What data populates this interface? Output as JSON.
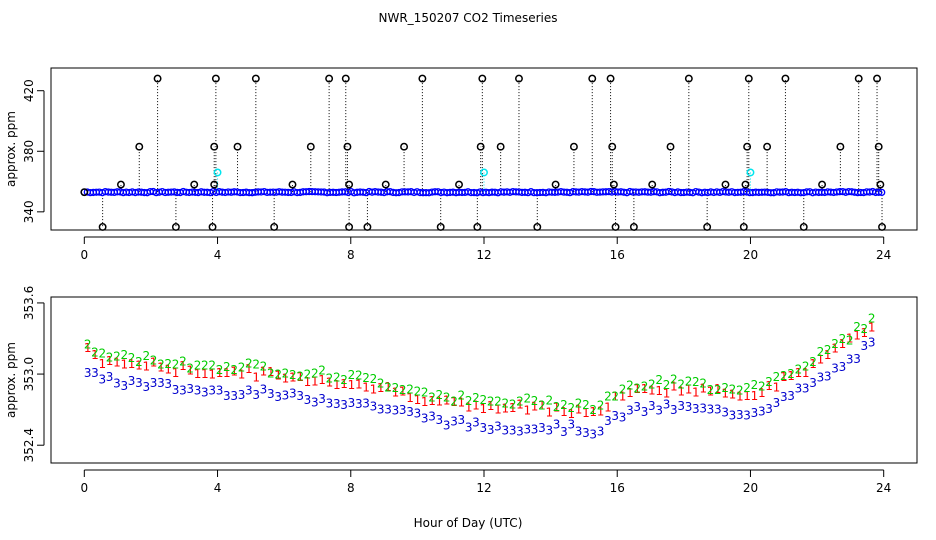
{
  "chart_data": [
    {
      "type": "scatter",
      "title": "NWR_150207  CO2 Timeseries",
      "xlabel": "",
      "ylabel": "approx. ppm",
      "xlim": [
        -1,
        25
      ],
      "ylim": [
        328,
        435
      ],
      "xticks": [
        0,
        4,
        8,
        12,
        16,
        20,
        24
      ],
      "xtick_labels": [
        "0",
        "4",
        "8",
        "12",
        "16",
        "20",
        "24"
      ],
      "yticks": [
        340,
        380,
        420
      ],
      "ytick_labels": [
        "340",
        "380",
        "420"
      ],
      "baseline": 353,
      "series": [
        {
          "name": "blue",
          "color": "#0000ff",
          "marker": "circle"
        },
        {
          "name": "black",
          "color": "#000000",
          "marker": "circle"
        },
        {
          "name": "cyan",
          "color": "#00e5ee",
          "marker": "circle"
        }
      ],
      "spikes": [
        {
          "x": 0.0,
          "y": 353,
          "label": ""
        },
        {
          "x": 0.55,
          "y": 330
        },
        {
          "x": 1.1,
          "y": 358
        },
        {
          "x": 1.65,
          "y": 383
        },
        {
          "x": 2.2,
          "y": 428
        },
        {
          "x": 2.75,
          "y": 330
        },
        {
          "x": 3.3,
          "y": 358
        },
        {
          "x": 3.85,
          "y": 330
        },
        {
          "x": 3.9,
          "y": 383
        },
        {
          "x": 3.95,
          "y": 428
        },
        {
          "x": 3.9,
          "y": 358
        },
        {
          "x": 4.6,
          "y": 383
        },
        {
          "x": 5.15,
          "y": 428
        },
        {
          "x": 5.7,
          "y": 330
        },
        {
          "x": 6.25,
          "y": 358
        },
        {
          "x": 6.8,
          "y": 383
        },
        {
          "x": 7.35,
          "y": 428
        },
        {
          "x": 7.9,
          "y": 383
        },
        {
          "x": 7.85,
          "y": 428
        },
        {
          "x": 7.95,
          "y": 358
        },
        {
          "x": 7.95,
          "y": 330
        },
        {
          "x": 8.5,
          "y": 330
        },
        {
          "x": 9.05,
          "y": 358
        },
        {
          "x": 9.6,
          "y": 383
        },
        {
          "x": 10.15,
          "y": 428
        },
        {
          "x": 10.7,
          "y": 330
        },
        {
          "x": 11.25,
          "y": 358
        },
        {
          "x": 11.8,
          "y": 330
        },
        {
          "x": 11.9,
          "y": 383
        },
        {
          "x": 11.95,
          "y": 428
        },
        {
          "x": 12.5,
          "y": 383
        },
        {
          "x": 13.05,
          "y": 428
        },
        {
          "x": 13.6,
          "y": 330
        },
        {
          "x": 14.15,
          "y": 358
        },
        {
          "x": 14.7,
          "y": 383
        },
        {
          "x": 15.25,
          "y": 428
        },
        {
          "x": 15.8,
          "y": 428
        },
        {
          "x": 15.85,
          "y": 383
        },
        {
          "x": 15.9,
          "y": 358
        },
        {
          "x": 15.95,
          "y": 330
        },
        {
          "x": 16.5,
          "y": 330
        },
        {
          "x": 17.05,
          "y": 358
        },
        {
          "x": 17.6,
          "y": 383
        },
        {
          "x": 18.15,
          "y": 428
        },
        {
          "x": 18.7,
          "y": 330
        },
        {
          "x": 19.25,
          "y": 358
        },
        {
          "x": 19.8,
          "y": 330
        },
        {
          "x": 19.85,
          "y": 358
        },
        {
          "x": 19.9,
          "y": 383
        },
        {
          "x": 19.95,
          "y": 428
        },
        {
          "x": 20.5,
          "y": 383
        },
        {
          "x": 21.05,
          "y": 428
        },
        {
          "x": 21.6,
          "y": 330
        },
        {
          "x": 22.15,
          "y": 358
        },
        {
          "x": 22.7,
          "y": 383
        },
        {
          "x": 23.25,
          "y": 428
        },
        {
          "x": 23.8,
          "y": 428
        },
        {
          "x": 23.85,
          "y": 383
        },
        {
          "x": 23.9,
          "y": 358
        },
        {
          "x": 23.95,
          "y": 330
        }
      ],
      "cyan_points": [
        {
          "x": 4.0,
          "y": 366
        },
        {
          "x": 12.0,
          "y": 366
        },
        {
          "x": 20.0,
          "y": 366
        }
      ]
    },
    {
      "type": "scatter",
      "title": "",
      "xlabel": "Hour of Day (UTC)",
      "ylabel": "approx. ppm",
      "xlim": [
        -1,
        25
      ],
      "ylim": [
        352.25,
        353.65
      ],
      "xticks": [
        0,
        4,
        8,
        12,
        16,
        20,
        24
      ],
      "xtick_labels": [
        "0",
        "4",
        "8",
        "12",
        "16",
        "20",
        "24"
      ],
      "yticks": [
        352.4,
        353.0,
        353.6
      ],
      "ytick_labels": [
        "352.4",
        "353.0",
        "353.6"
      ],
      "series": [
        {
          "name": "1",
          "color": "#ff0000",
          "marker": "1"
        },
        {
          "name": "2",
          "color": "#00cd00",
          "marker": "2"
        },
        {
          "name": "3",
          "color": "#0000cd",
          "marker": "3"
        }
      ],
      "trend_keypoints": {
        "x": [
          0,
          0.5,
          1,
          2,
          3,
          4,
          5,
          6,
          7,
          8,
          9,
          10,
          11,
          12,
          13,
          14,
          15,
          15.5,
          16,
          17,
          18,
          19,
          20,
          21,
          22,
          23,
          23.8
        ],
        "y": [
          353.22,
          353.12,
          353.1,
          353.08,
          353.04,
          353.02,
          353.02,
          352.98,
          352.96,
          352.93,
          352.88,
          352.82,
          352.76,
          352.72,
          352.72,
          352.72,
          352.7,
          352.68,
          352.82,
          352.88,
          352.88,
          352.85,
          352.84,
          352.95,
          353.1,
          353.28,
          353.45
        ]
      },
      "offsets": {
        "1": 0.0,
        "2": 0.05,
        "3": -0.16
      }
    }
  ]
}
